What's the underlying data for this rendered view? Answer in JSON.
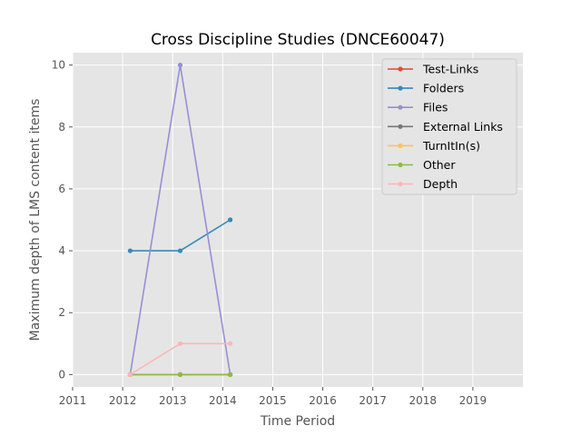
{
  "chart_data": {
    "type": "line",
    "title": "Cross Discipline Studies (DNCE60047)",
    "xlabel": "Time Period",
    "ylabel": "Maximum depth of LMS content items",
    "xlim": [
      2011,
      2020
    ],
    "ylim": [
      -0.4,
      10.4
    ],
    "xticks": [
      2011,
      2012,
      2013,
      2014,
      2015,
      2016,
      2017,
      2018,
      2019
    ],
    "yticks": [
      0,
      2,
      4,
      6,
      8,
      10
    ],
    "grid": true,
    "legend_position": "top-right",
    "x": [
      2012.15,
      2013.15,
      2014.15
    ],
    "series": [
      {
        "name": "Test-Links",
        "color": "#E24A33",
        "values": [
          0,
          0,
          0
        ]
      },
      {
        "name": "Folders",
        "color": "#348ABD",
        "values": [
          4,
          4,
          5
        ]
      },
      {
        "name": "Files",
        "color": "#988ED5",
        "values": [
          0,
          10,
          0
        ]
      },
      {
        "name": "External Links",
        "color": "#777777",
        "values": [
          0,
          0,
          0
        ]
      },
      {
        "name": "TurnItIn(s)",
        "color": "#FBC15E",
        "values": [
          0,
          0,
          0
        ]
      },
      {
        "name": "Other",
        "color": "#8EBA42",
        "values": [
          0,
          0,
          0
        ]
      },
      {
        "name": "Depth",
        "color": "#FFB5B8",
        "values": [
          0,
          1,
          1
        ]
      }
    ]
  }
}
